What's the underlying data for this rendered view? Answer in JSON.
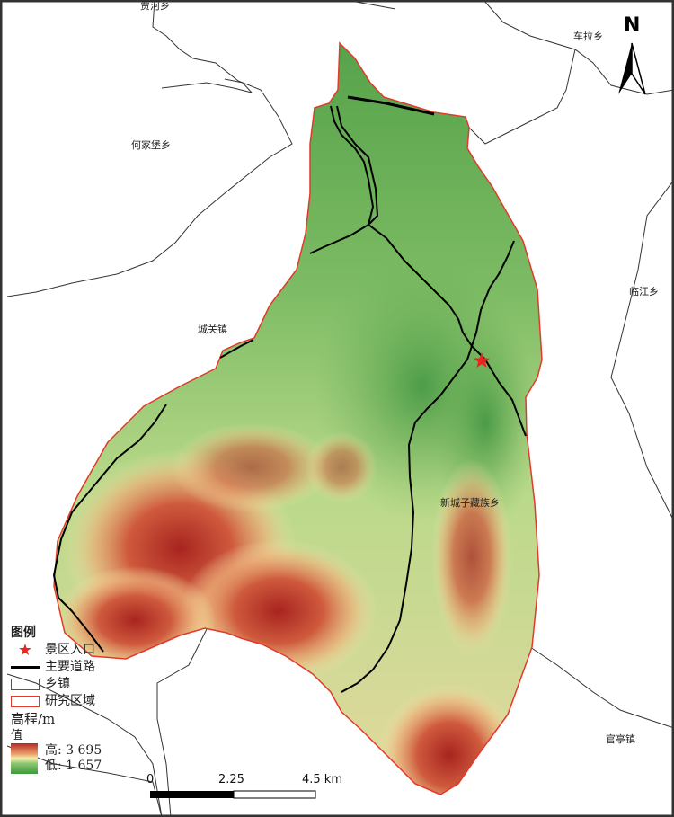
{
  "map": {
    "place_labels": [
      "贾河乡",
      "车拉乡",
      "何家堡乡",
      "城关镇",
      "临江乡",
      "新城子藏族乡",
      "官亭镇"
    ],
    "north_arrow": "N",
    "legend": {
      "title": "图例",
      "items": [
        {
          "symbol": "red-star",
          "label": "景区入口"
        },
        {
          "symbol": "black-line",
          "label": "主要道路"
        },
        {
          "symbol": "gray-box",
          "label": "乡镇"
        },
        {
          "symbol": "red-box",
          "label": "研究区域"
        }
      ],
      "elevation_title": "高程/m",
      "value_label": "值",
      "high": "高: 3 695",
      "low": "低: 1 657",
      "ramp_colors": [
        "#b42a24",
        "#e9a06a",
        "#f4f0b0",
        "#8fc773",
        "#3d9a3c"
      ]
    },
    "scale_bar": {
      "ticks": [
        "0",
        "2.25",
        "4.5 km"
      ]
    },
    "colors": {
      "boundary": "#e23a2a",
      "road": "#000000",
      "township": "#333333",
      "star": "#e8251f"
    }
  }
}
